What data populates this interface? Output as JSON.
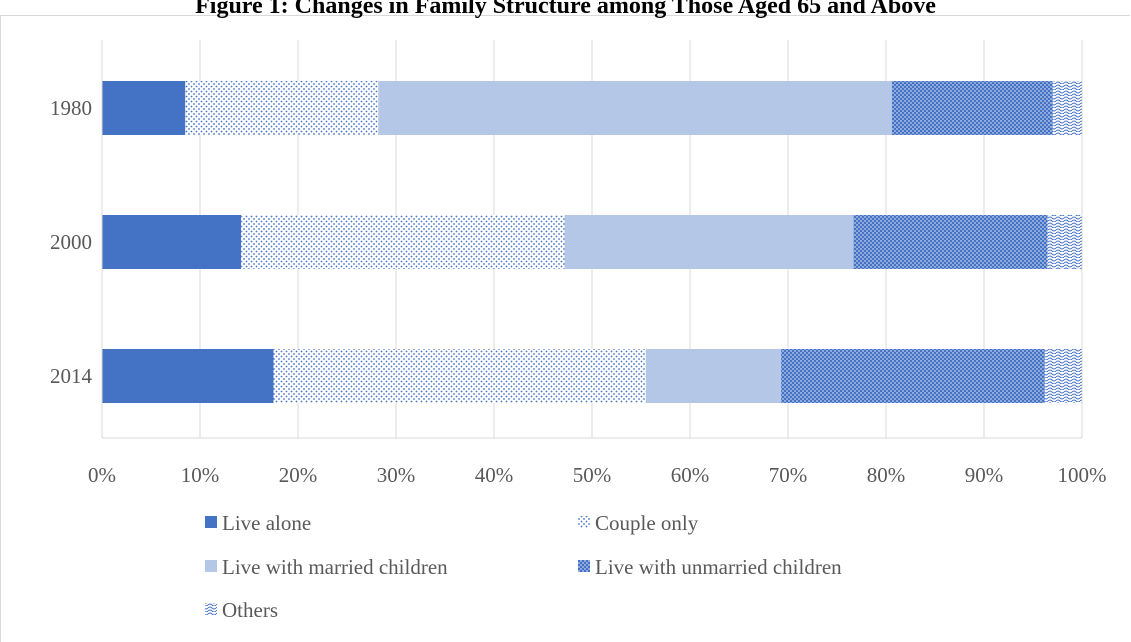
{
  "chart_data": {
    "type": "bar",
    "orientation": "horizontal",
    "stacked": "percent",
    "title": "Figure 1: Changes in Family Structure among Those Aged 65 and Above",
    "categories": [
      "1980",
      "2000",
      "2014"
    ],
    "series": [
      {
        "name": "Live alone",
        "color": "#4472c4",
        "pattern": "solid",
        "values": [
          8.5,
          14.2,
          17.5
        ]
      },
      {
        "name": "Couple only",
        "color": "#4472c4",
        "pattern": "dotted-light",
        "values": [
          19.7,
          33.0,
          38.0
        ]
      },
      {
        "name": "Live with married children",
        "color": "#b4c7e7",
        "pattern": "solid",
        "values": [
          52.4,
          29.5,
          13.8
        ]
      },
      {
        "name": "Live with unmarried children",
        "color": "#4472c4",
        "pattern": "dotted-dense",
        "values": [
          16.4,
          19.8,
          26.9
        ]
      },
      {
        "name": "Others",
        "color": "#4472c4",
        "pattern": "waves",
        "values": [
          3.0,
          3.5,
          3.8
        ]
      }
    ],
    "xticks": [
      "0%",
      "10%",
      "20%",
      "30%",
      "40%",
      "50%",
      "60%",
      "70%",
      "80%",
      "90%",
      "100%"
    ],
    "xlim": [
      0,
      100
    ],
    "grid": true,
    "legend": "bottom",
    "xlabel": "",
    "ylabel": ""
  }
}
